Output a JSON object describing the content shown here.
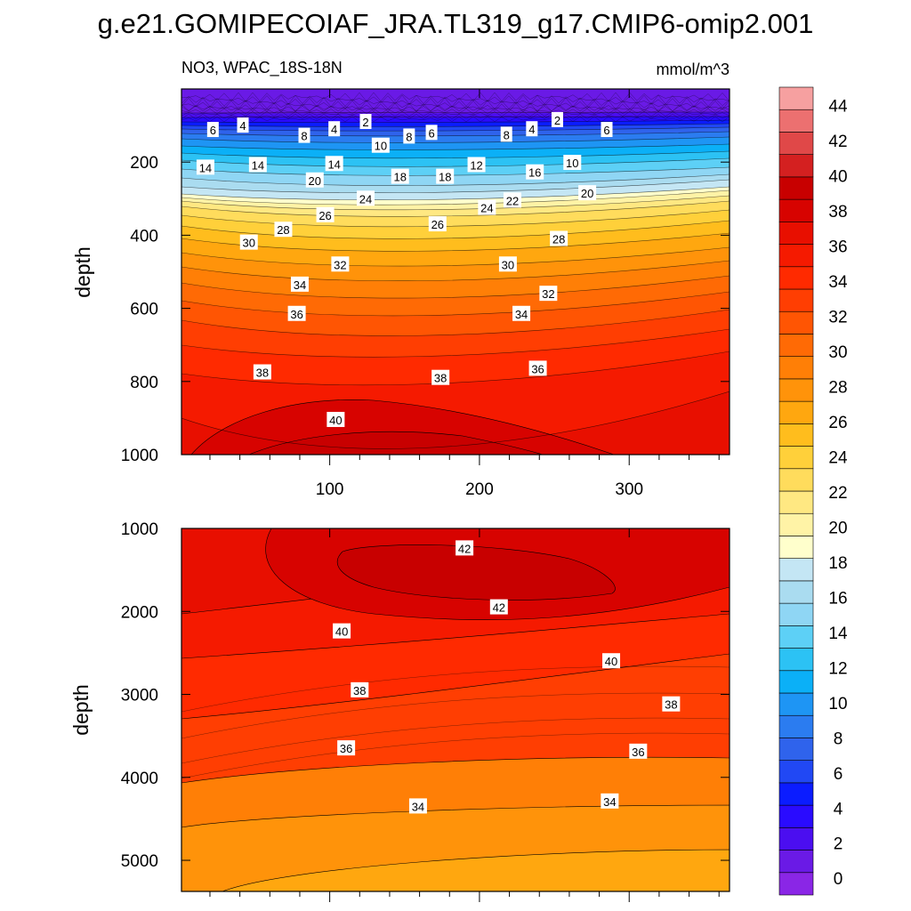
{
  "title": "g.e21.GOMIPECOIAF_JRA.TL319_g17.CMIP6-omip2.001",
  "subtitle_left": "NO3, WPAC_18S-18N",
  "subtitle_right": "mmol/m^3",
  "colorbar": {
    "levels": [
      0,
      2,
      4,
      6,
      8,
      10,
      12,
      14,
      16,
      18,
      20,
      22,
      24,
      26,
      28,
      30,
      32,
      34,
      36,
      38,
      40,
      42,
      44
    ],
    "colors": [
      "#8a26e6",
      "#6a1ae6",
      "#4b0ef0",
      "#2a0bff",
      "#0b1cff",
      "#2148f4",
      "#2f63ec",
      "#2b7cf0",
      "#1e95f4",
      "#0bb0f7",
      "#2cc2f4",
      "#5dd0f6",
      "#8fd6f4",
      "#aadcf0",
      "#c4e6f4",
      "#ffffcc",
      "#fff3a6",
      "#ffe882",
      "#ffdc5c",
      "#ffd03a",
      "#ffbd1d",
      "#ffa70f",
      "#ff930a",
      "#ff7f06",
      "#ff6a05",
      "#ff5503",
      "#ff3e02",
      "#ff2a00",
      "#f51a00",
      "#e80f00",
      "#d70300",
      "#c80000",
      "#d42020",
      "#e04848",
      "#ec7070",
      "#f6a0a0"
    ]
  },
  "chart_data": [
    {
      "type": "contour",
      "panel": "upper",
      "variable": "NO3",
      "region": "WPAC_18S-18N",
      "units": "mmol/m^3",
      "xlabel": "",
      "ylabel": "depth",
      "x_ticks": [
        100,
        200,
        300
      ],
      "y_ticks": [
        200,
        400,
        600,
        800,
        1000
      ],
      "xlim": [
        1,
        367
      ],
      "ylim": [
        0,
        1000
      ],
      "y_reversed": true,
      "contour_labels": [
        {
          "x": 22,
          "y": 112,
          "v": 6
        },
        {
          "x": 42,
          "y": 100,
          "v": 4
        },
        {
          "x": 83,
          "y": 128,
          "v": 8
        },
        {
          "x": 103,
          "y": 110,
          "v": 4
        },
        {
          "x": 124,
          "y": 90,
          "v": 2
        },
        {
          "x": 153,
          "y": 130,
          "v": 8
        },
        {
          "x": 168,
          "y": 120,
          "v": 6
        },
        {
          "x": 218,
          "y": 125,
          "v": 8
        },
        {
          "x": 235,
          "y": 110,
          "v": 4
        },
        {
          "x": 252,
          "y": 85,
          "v": 2
        },
        {
          "x": 285,
          "y": 112,
          "v": 6
        },
        {
          "x": 17,
          "y": 215,
          "v": 14
        },
        {
          "x": 52,
          "y": 208,
          "v": 14
        },
        {
          "x": 103,
          "y": 205,
          "v": 14
        },
        {
          "x": 134,
          "y": 155,
          "v": 10
        },
        {
          "x": 90,
          "y": 250,
          "v": 20
        },
        {
          "x": 147,
          "y": 240,
          "v": 18
        },
        {
          "x": 177,
          "y": 240,
          "v": 18
        },
        {
          "x": 198,
          "y": 208,
          "v": 12
        },
        {
          "x": 262,
          "y": 202,
          "v": 10
        },
        {
          "x": 237,
          "y": 228,
          "v": 16
        },
        {
          "x": 272,
          "y": 285,
          "v": 20
        },
        {
          "x": 222,
          "y": 305,
          "v": 22
        },
        {
          "x": 205,
          "y": 325,
          "v": 24
        },
        {
          "x": 124,
          "y": 300,
          "v": 24
        },
        {
          "x": 97,
          "y": 345,
          "v": 26
        },
        {
          "x": 172,
          "y": 370,
          "v": 26
        },
        {
          "x": 69,
          "y": 385,
          "v": 28
        },
        {
          "x": 253,
          "y": 410,
          "v": 28
        },
        {
          "x": 46,
          "y": 420,
          "v": 30
        },
        {
          "x": 219,
          "y": 480,
          "v": 30
        },
        {
          "x": 107,
          "y": 480,
          "v": 32
        },
        {
          "x": 246,
          "y": 560,
          "v": 32
        },
        {
          "x": 80,
          "y": 535,
          "v": 34
        },
        {
          "x": 228,
          "y": 615,
          "v": 34
        },
        {
          "x": 78,
          "y": 615,
          "v": 36
        },
        {
          "x": 239,
          "y": 765,
          "v": 36
        },
        {
          "x": 55,
          "y": 775,
          "v": 38
        },
        {
          "x": 174,
          "y": 790,
          "v": 38
        },
        {
          "x": 104,
          "y": 905,
          "v": 40
        }
      ]
    },
    {
      "type": "contour",
      "panel": "lower",
      "variable": "NO3",
      "xlabel": "",
      "ylabel": "depth",
      "y_ticks": [
        1000,
        2000,
        3000,
        4000,
        5000
      ],
      "xlim": [
        1,
        367
      ],
      "ylim": [
        1000,
        5375
      ],
      "y_reversed": true,
      "contour_labels": [
        {
          "x": 190,
          "y": 1240,
          "v": 42
        },
        {
          "x": 213,
          "y": 1950,
          "v": 42
        },
        {
          "x": 108,
          "y": 2240,
          "v": 40
        },
        {
          "x": 288,
          "y": 2600,
          "v": 40
        },
        {
          "x": 120,
          "y": 2950,
          "v": 38
        },
        {
          "x": 328,
          "y": 3120,
          "v": 38
        },
        {
          "x": 111,
          "y": 3650,
          "v": 36
        },
        {
          "x": 306,
          "y": 3690,
          "v": 36
        },
        {
          "x": 159,
          "y": 4350,
          "v": 34
        },
        {
          "x": 287,
          "y": 4290,
          "v": 34
        }
      ]
    }
  ]
}
